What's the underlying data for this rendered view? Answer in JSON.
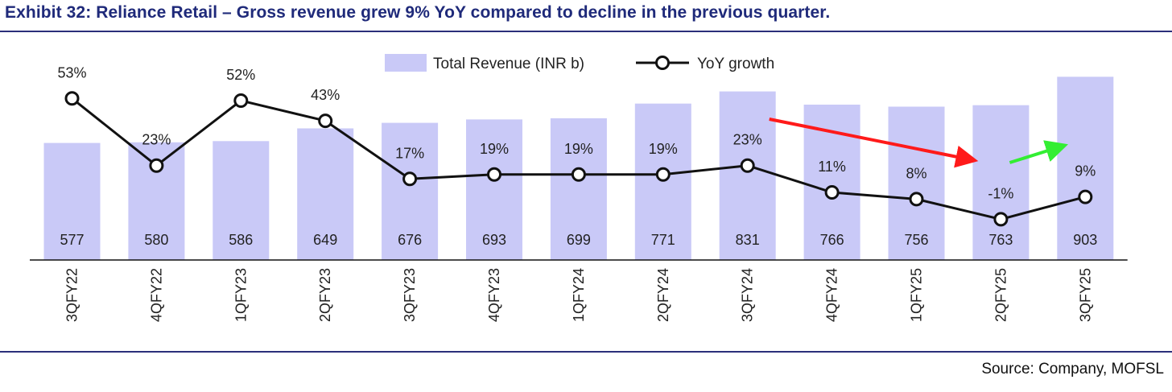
{
  "title": "Exhibit 32: Reliance Retail – Gross revenue grew 9% YoY compared to decline in the previous quarter.",
  "source": "Source: Company, MOFSL",
  "colors": {
    "bar": "#c9c9f7",
    "line": "#111111",
    "marker_fill": "#ffffff",
    "red_arrow": "#ff1a1a",
    "green_arrow": "#33ee33",
    "title": "#1f2a7a"
  },
  "chart_data": {
    "type": "bar",
    "categories": [
      "3QFY22",
      "4QFY22",
      "1QFY23",
      "2QFY23",
      "3QFY23",
      "4QFY23",
      "1QFY24",
      "2QFY24",
      "3QFY24",
      "4QFY24",
      "1QFY25",
      "2QFY25",
      "3QFY25"
    ],
    "series": [
      {
        "name": "Total Revenue (INR b)",
        "type": "bar",
        "values": [
          577,
          580,
          586,
          649,
          676,
          693,
          699,
          771,
          831,
          766,
          756,
          763,
          903
        ],
        "labels": [
          "577",
          "580",
          "586",
          "649",
          "676",
          "693",
          "699",
          "771",
          "831",
          "766",
          "756",
          "763",
          "903"
        ]
      },
      {
        "name": "YoY growth",
        "type": "line",
        "values": [
          53,
          23,
          52,
          43,
          17,
          19,
          19,
          19,
          23,
          11,
          8,
          -1,
          9
        ],
        "labels": [
          "53%",
          "23%",
          "52%",
          "43%",
          "17%",
          "19%",
          "19%",
          "19%",
          "23%",
          "11%",
          "8%",
          "-1%",
          "9%"
        ]
      }
    ],
    "legend_position": "top-center",
    "grid": false,
    "annotations": [
      {
        "type": "arrow",
        "color": "red",
        "from_category": "3QFY24",
        "to_category": "2QFY25"
      },
      {
        "type": "arrow",
        "color": "green",
        "from_category": "2QFY25",
        "to_category": "3QFY25"
      }
    ]
  }
}
